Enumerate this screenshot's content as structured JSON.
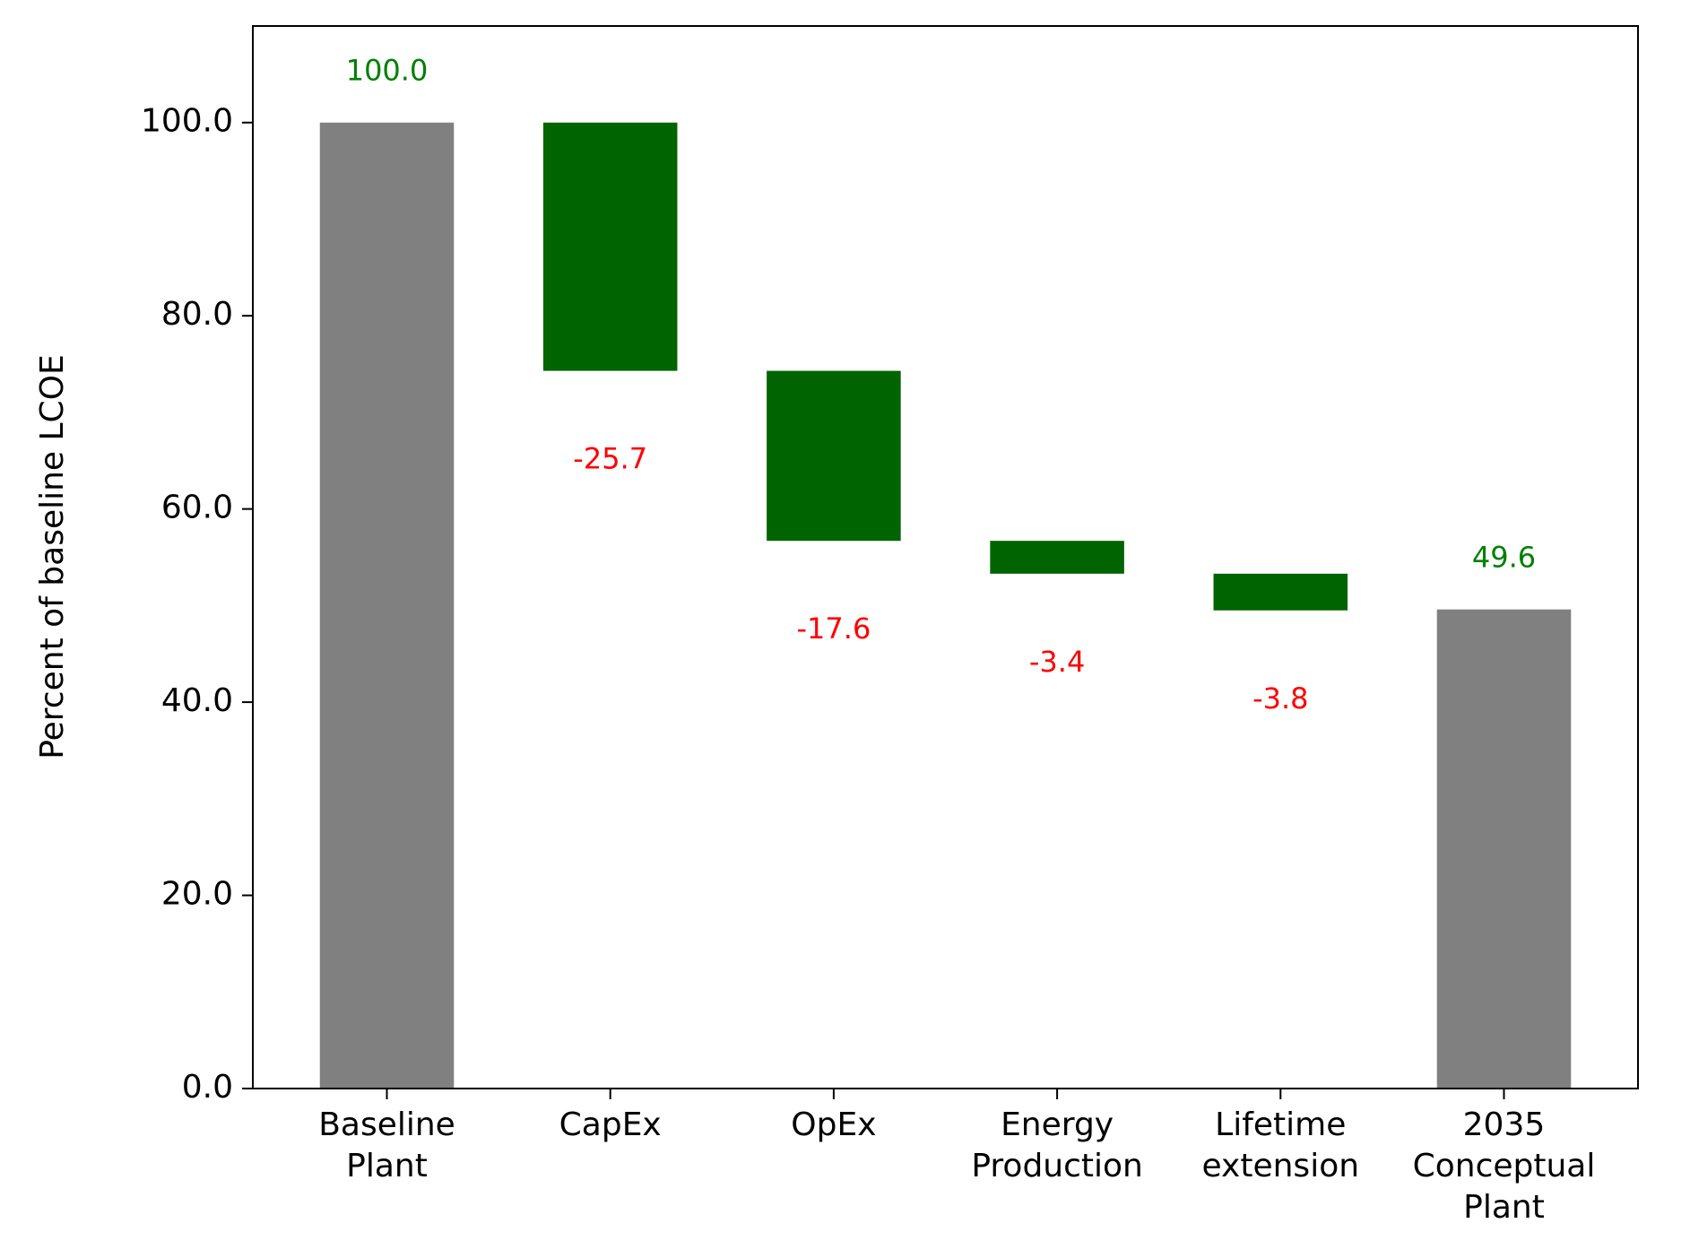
{
  "chart_data": {
    "type": "bar",
    "subtype": "waterfall",
    "title": "",
    "xlabel": "",
    "ylabel": "Percent of baseline LCOE",
    "ylim": [
      0,
      110
    ],
    "yticks": [
      "0.0",
      "20.0",
      "40.0",
      "60.0",
      "80.0",
      "100.0"
    ],
    "grid": false,
    "legend": "none",
    "categories": [
      [
        "Baseline",
        "Plant"
      ],
      [
        "CapEx"
      ],
      [
        "OpEx"
      ],
      [
        "Energy",
        "Production"
      ],
      [
        "Lifetime",
        "extension"
      ],
      [
        "2035",
        "Conceptual",
        "Plant"
      ]
    ],
    "bars": [
      {
        "kind": "total",
        "bottom": 0,
        "top": 100.0,
        "label": "100.0"
      },
      {
        "kind": "delta",
        "bottom": 74.3,
        "top": 100.0,
        "label": "-25.7"
      },
      {
        "kind": "delta",
        "bottom": 56.7,
        "top": 74.3,
        "label": "-17.6"
      },
      {
        "kind": "delta",
        "bottom": 53.3,
        "top": 56.7,
        "label": "-3.4"
      },
      {
        "kind": "delta",
        "bottom": 49.5,
        "top": 53.3,
        "label": "-3.8"
      },
      {
        "kind": "total",
        "bottom": 0,
        "top": 49.6,
        "label": "49.6"
      }
    ],
    "colors": {
      "total": "#808080",
      "delta": "#006400",
      "total_label": "#008000",
      "delta_label": "#ff0000"
    }
  }
}
